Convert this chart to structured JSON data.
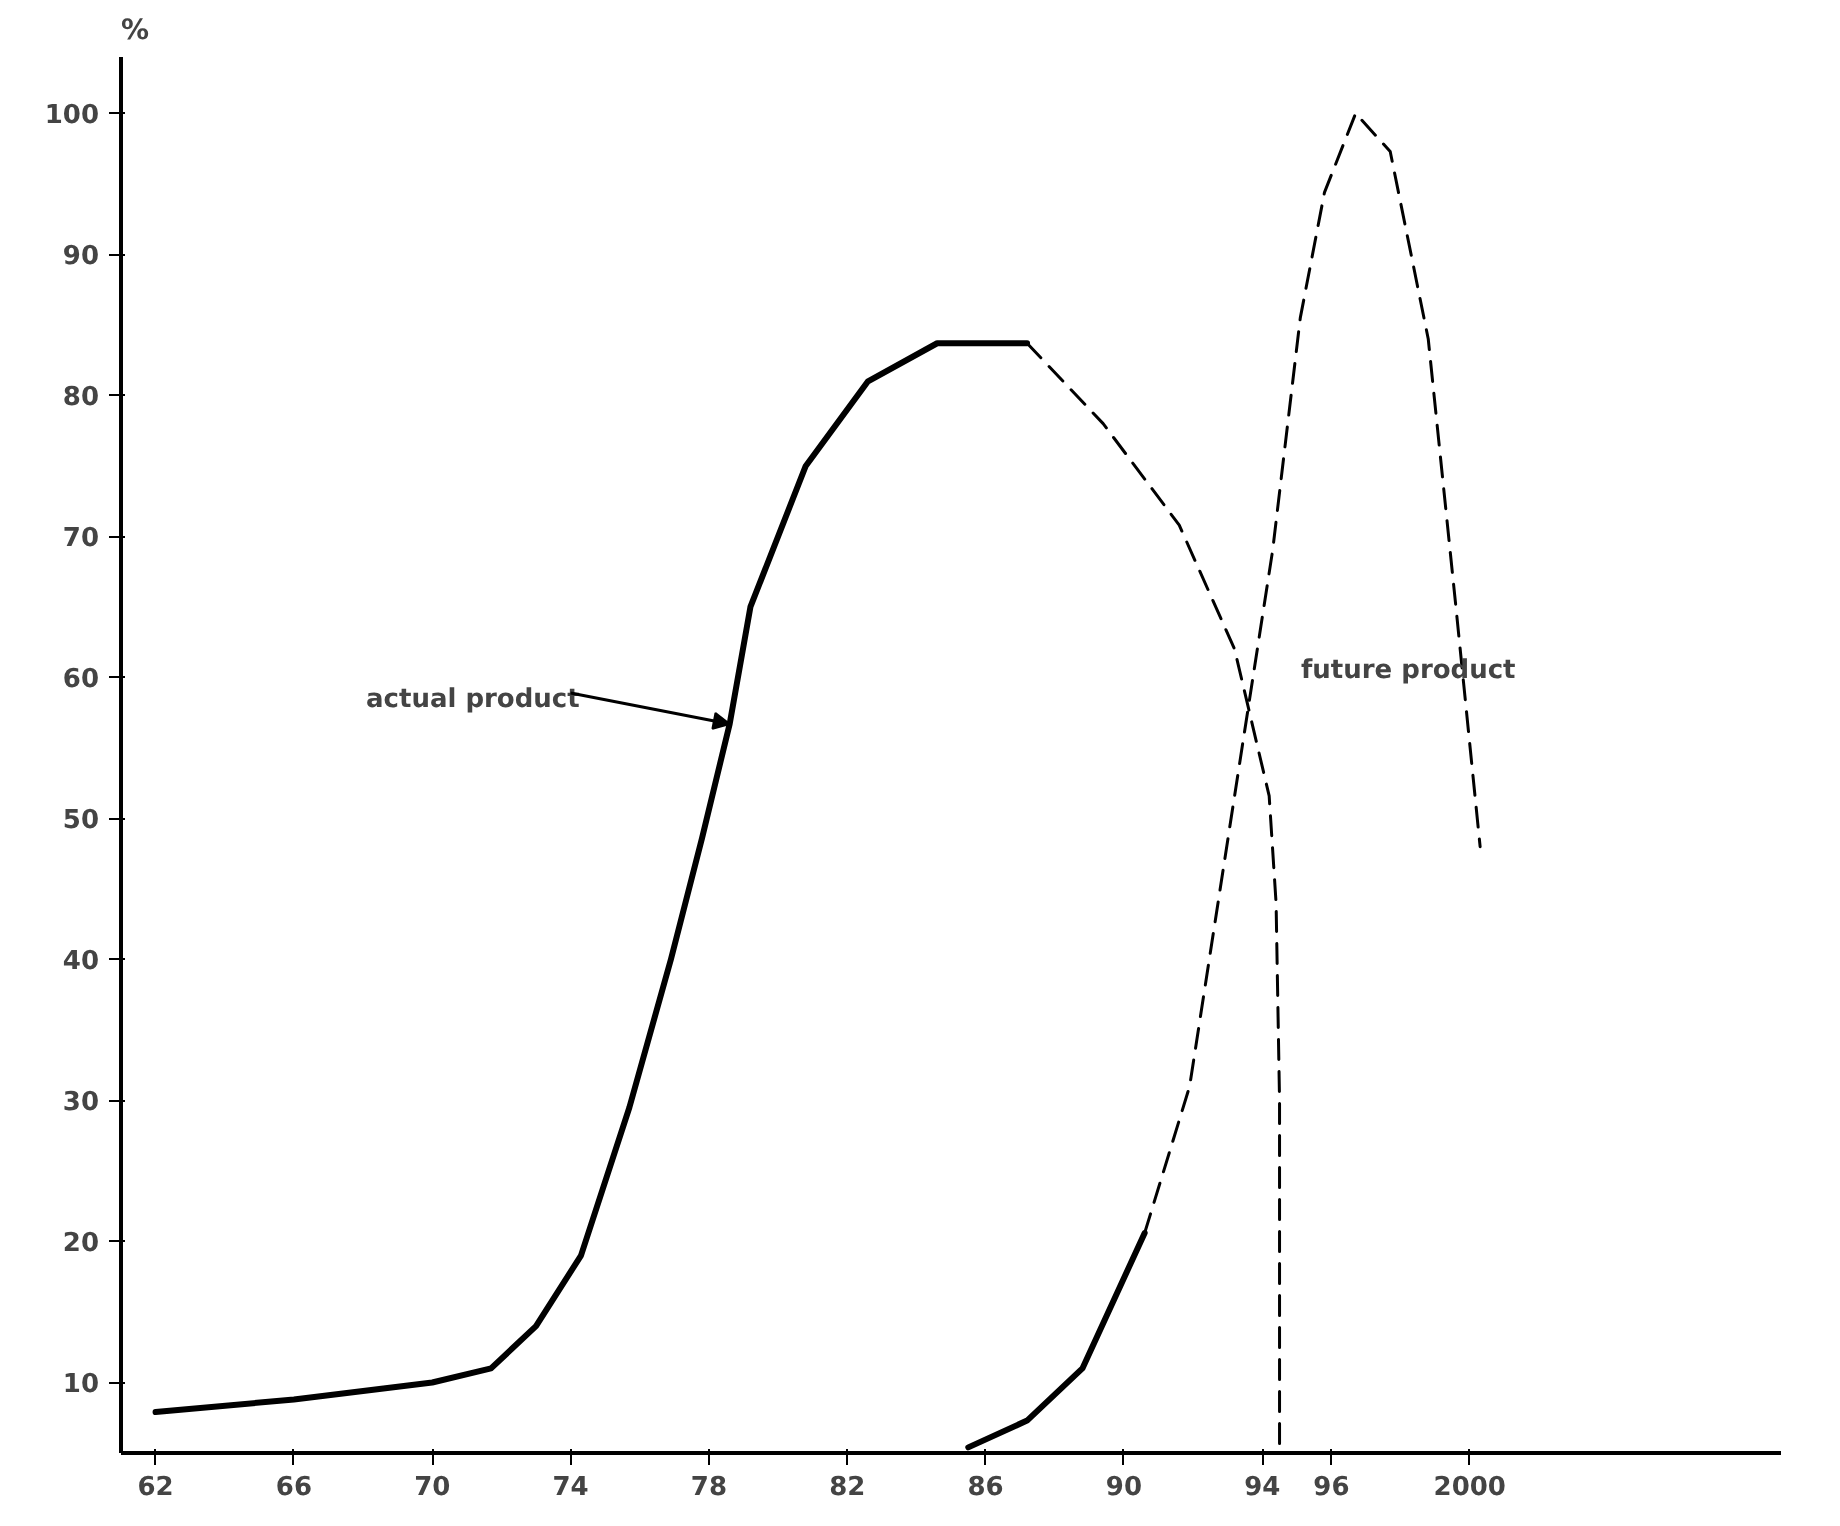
{
  "chart_data": {
    "type": "line",
    "ylabel": "%",
    "series": [
      {
        "name": null,
        "color": "#000000",
        "line_style": "solid",
        "x": [
          1962,
          1966,
          1970,
          1971.7,
          1973,
          1974.3,
          1975.7,
          1976.9,
          1977.8,
          1978.6,
          1979.2,
          1980.8,
          1982.6,
          1984.6,
          1987.2
        ],
        "values": [
          7.9,
          8.8,
          10,
          11,
          14,
          19,
          29.5,
          40,
          48.6,
          56.7,
          65,
          75,
          81,
          83.7,
          83.7
        ]
      },
      {
        "name": null,
        "color": "#000000",
        "line_style": "dashed",
        "x": [
          1987.2,
          1989.4,
          1991.6,
          1993.2,
          1994.2,
          1994.4,
          1994.5,
          1994.5
        ],
        "values": [
          83.7,
          78,
          70.8,
          62,
          51.6,
          44,
          30,
          5.4
        ]
      },
      {
        "name": null,
        "color": "#000000",
        "line_style": "solid",
        "x": [
          1985.5,
          1987.2,
          1988.8,
          1990.6
        ],
        "values": [
          5.4,
          7.3,
          11,
          20.6
        ]
      },
      {
        "name": null,
        "color": "#000000",
        "line_style": "dashed",
        "x": [
          1990.6,
          1991.9,
          1993.2,
          1994.3,
          1995.1,
          1995.8,
          1996.7,
          1997.7,
          1998.8,
          1999.6,
          2000.3
        ],
        "values": [
          20.6,
          31,
          51.6,
          69,
          85.5,
          94.4,
          100,
          97.3,
          84,
          65,
          48
        ]
      }
    ],
    "annotations": [
      {
        "text": "actual product",
        "x": 1978.6,
        "y": 56.7
      },
      "future product"
    ],
    "xlim": [
      1961,
      2009
    ],
    "ylim": [
      5,
      104
    ],
    "xticks": [
      {
        "value": 1962,
        "label": "62"
      },
      {
        "value": 1966,
        "label": "66"
      },
      {
        "value": 1970,
        "label": "70"
      },
      {
        "value": 1974,
        "label": "74"
      },
      {
        "value": 1978,
        "label": "78"
      },
      {
        "value": 1982,
        "label": "82"
      },
      {
        "value": 1986,
        "label": "86"
      },
      {
        "value": 1990,
        "label": "90"
      },
      {
        "value": 1994,
        "label": "94"
      },
      {
        "value": 1996,
        "label": "96"
      },
      2000
    ],
    "yticks": [
      10,
      20,
      30,
      40,
      50,
      60,
      70,
      80,
      90,
      100
    ],
    "grid": false
  }
}
